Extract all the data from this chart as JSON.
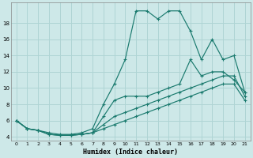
{
  "xlabel": "Humidex (Indice chaleur)",
  "xlim": [
    -0.5,
    21.5
  ],
  "ylim": [
    3.5,
    20.5
  ],
  "yticks": [
    4,
    6,
    8,
    10,
    12,
    14,
    16,
    18
  ],
  "xticks": [
    0,
    1,
    2,
    3,
    4,
    5,
    6,
    7,
    8,
    9,
    10,
    11,
    12,
    13,
    14,
    15,
    16,
    17,
    18,
    19,
    20,
    21
  ],
  "bg_color": "#cde8e8",
  "grid_color": "#afd4d4",
  "line_color": "#1a7a6e",
  "lines": [
    {
      "x": [
        0,
        1,
        2,
        3,
        4,
        5,
        6,
        7,
        8,
        9,
        10,
        11,
        12,
        13,
        14,
        15,
        16,
        17,
        18,
        19,
        20,
        21
      ],
      "y": [
        6,
        5,
        4.8,
        4.5,
        4.3,
        4.3,
        4.5,
        5,
        8,
        10.5,
        13.5,
        19.5,
        19.5,
        18.5,
        19.5,
        19.5,
        17,
        13.5,
        16,
        13.5,
        14,
        9.5
      ]
    },
    {
      "x": [
        0,
        1,
        2,
        3,
        4,
        5,
        6,
        7,
        8,
        9,
        10,
        11,
        12,
        13,
        14,
        15,
        16,
        17,
        18,
        19,
        20,
        21
      ],
      "y": [
        6,
        5,
        4.8,
        4.3,
        4.2,
        4.2,
        4.3,
        4.5,
        6.5,
        8.5,
        9,
        9,
        9,
        9.5,
        10,
        10.5,
        13.5,
        11.5,
        12,
        12,
        11,
        9.5
      ]
    },
    {
      "x": [
        0,
        1,
        2,
        3,
        4,
        5,
        6,
        7,
        8,
        9,
        10,
        11,
        12,
        13,
        14,
        15,
        16,
        17,
        18,
        19,
        20,
        21
      ],
      "y": [
        6,
        5,
        4.8,
        4.3,
        4.2,
        4.2,
        4.3,
        4.5,
        5.5,
        6.5,
        7.0,
        7.5,
        8.0,
        8.5,
        9.0,
        9.5,
        10.0,
        10.5,
        11.0,
        11.5,
        11.5,
        9.0
      ]
    },
    {
      "x": [
        0,
        1,
        2,
        3,
        4,
        5,
        6,
        7,
        8,
        9,
        10,
        11,
        12,
        13,
        14,
        15,
        16,
        17,
        18,
        19,
        20,
        21
      ],
      "y": [
        6,
        5,
        4.8,
        4.3,
        4.2,
        4.2,
        4.3,
        4.5,
        5.0,
        5.5,
        6.0,
        6.5,
        7.0,
        7.5,
        8.0,
        8.5,
        9.0,
        9.5,
        10.0,
        10.5,
        10.5,
        8.5
      ]
    }
  ]
}
